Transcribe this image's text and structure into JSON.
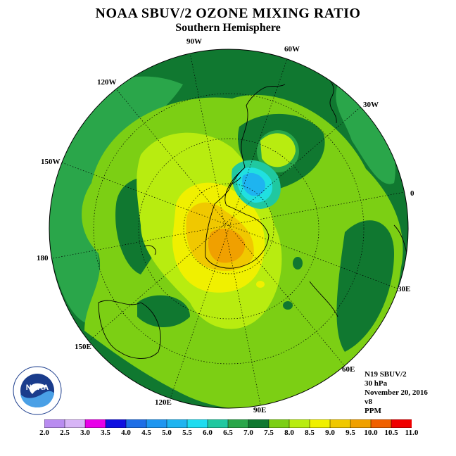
{
  "title": "NOAA SBUV/2 OZONE MIXING RATIO",
  "subtitle": "Southern Hemisphere",
  "longitude_labels": {
    "l90w": "90W",
    "l60w": "60W",
    "l120w": "120W",
    "l30w": "30W",
    "l150w": "150W",
    "l0": "0",
    "l180": "180",
    "l30e": "30E",
    "l150e": "150E",
    "l60e": "60E",
    "l120e": "120E",
    "l90e": "90E"
  },
  "info": {
    "instrument": "N19 SBUV/2",
    "level": "30 hPa",
    "date": "November 20, 2016",
    "version": "v8",
    "units": "PPM"
  },
  "logo_text": "NOAA",
  "colorbar": {
    "ticks": [
      "2.0",
      "2.5",
      "3.0",
      "3.5",
      "4.0",
      "4.5",
      "5.0",
      "5.5",
      "6.0",
      "6.5",
      "7.0",
      "7.5",
      "8.0",
      "8.5",
      "9.0",
      "9.5",
      "10.0",
      "10.5",
      "11.0"
    ],
    "colors": [
      "#b98cf0",
      "#d7b4f6",
      "#e800e8",
      "#1010e0",
      "#1e6ee6",
      "#1e96f0",
      "#1eb4f0",
      "#1edcf0",
      "#20c8a0",
      "#2aa64a",
      "#107830",
      "#7ccf14",
      "#b8ec10",
      "#f0f000",
      "#f0c800",
      "#f0a000",
      "#f06000",
      "#f00000",
      "#8c5a32"
    ]
  },
  "map_colors": {
    "c65": "#2aa64a",
    "c70": "#107830",
    "c75": "#7ccf14",
    "c80": "#b8ec10",
    "c85": "#f0f000",
    "c90": "#f0c800",
    "c95": "#f0a000",
    "c55": "#20e0e0",
    "c50": "#1eb4f0",
    "c60": "#20c8a0"
  }
}
